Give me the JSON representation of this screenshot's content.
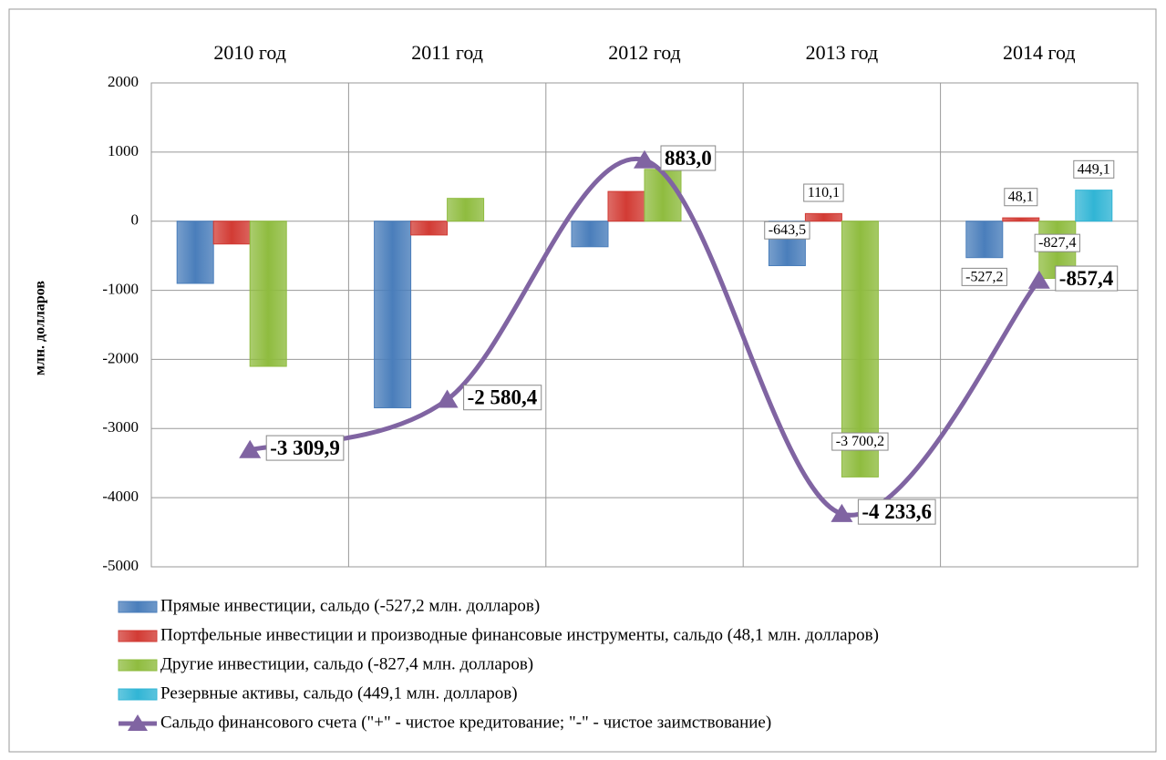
{
  "chart_data": {
    "type": "bar",
    "ylabel": "млн. долларов",
    "categories": [
      "2010 год",
      "2011 год",
      "2012 год",
      "2013 год",
      "2014 год"
    ],
    "series": [
      {
        "name": "Прямые инвестиции, сальдо (-527,2 млн. долларов)",
        "color": "#4a7ebb",
        "values": [
          -900,
          -2700,
          -370,
          -643.5,
          -527.2
        ],
        "value_labels": [
          null,
          null,
          null,
          "-643,5",
          "-527,2"
        ]
      },
      {
        "name": "Портфельные инвестиции и производные финансовые инструменты, сальдо (48,1 млн. долларов)",
        "color": "#d23b34",
        "values": [
          -330,
          -200,
          430,
          110.1,
          48.1
        ],
        "value_labels": [
          null,
          null,
          null,
          "110,1",
          "48,1"
        ]
      },
      {
        "name": "Другие инвестиции, сальдо (-827,4 млн. долларов)",
        "color": "#8fbc3f",
        "values": [
          -2100,
          330,
          750,
          -3700.2,
          -827.4
        ],
        "value_labels": [
          null,
          null,
          null,
          "-3 700,2",
          "-827,4"
        ]
      },
      {
        "name": "Резервные активы, сальдо (449,1 млн. долларов)",
        "color": "#31b5d5",
        "values": [
          null,
          null,
          null,
          null,
          449.1
        ],
        "value_labels": [
          null,
          null,
          null,
          null,
          "449,1"
        ]
      },
      {
        "name": "Сальдо финансового счета (\"+\"  - чистое кредитование; \"-\"  - чистое заимствование)",
        "color": "#8064a2",
        "type": "line",
        "values": [
          -3309.9,
          -2580.4,
          883.0,
          -4233.6,
          -857.4
        ],
        "value_labels": [
          "-3 309,9",
          "-2 580,4",
          "883,0",
          "-4 233,6",
          "-857,4"
        ]
      }
    ],
    "ylim": [
      -5000,
      2000
    ],
    "yticks": [
      -5000,
      -4000,
      -3000,
      -2000,
      -1000,
      0,
      1000,
      2000
    ],
    "grid": true
  }
}
